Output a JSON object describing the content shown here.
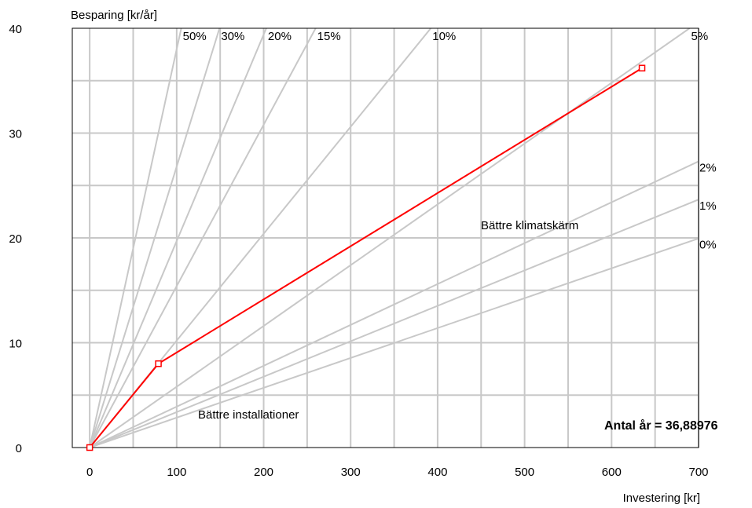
{
  "chart_data": {
    "type": "line",
    "title": "",
    "xlabel": "Investering [kr]",
    "ylabel": "Besparing [kr/år]",
    "xlim": [
      -20,
      700
    ],
    "ylim": [
      0,
      40
    ],
    "x_ticks": [
      0,
      100,
      200,
      300,
      400,
      500,
      600,
      700
    ],
    "y_ticks": [
      0,
      10,
      20,
      30,
      40
    ],
    "x_tick_labels": [
      "0",
      "100",
      "200",
      "300",
      "400",
      "500",
      "600",
      "700"
    ],
    "y_tick_labels": [
      "0",
      "10",
      "20",
      "30",
      "40"
    ],
    "x_minor_step": 50,
    "y_minor_step": 5,
    "grid": true,
    "origin": [
      0,
      0
    ],
    "rate_lines": [
      {
        "label": "50%",
        "slope": 0.38
      },
      {
        "label": "30%",
        "slope": 0.268
      },
      {
        "label": "20%",
        "slope": 0.197
      },
      {
        "label": "15%",
        "slope": 0.154
      },
      {
        "label": "10%",
        "slope": 0.102
      },
      {
        "label": "5%",
        "slope": 0.058
      },
      {
        "label": "2%",
        "slope": 0.039
      },
      {
        "label": "1%",
        "slope": 0.0338
      },
      {
        "label": "0%",
        "slope": 0.0285
      }
    ],
    "series": [
      {
        "color": "#ff0000",
        "x": [
          0,
          79,
          635
        ],
        "y": [
          0,
          8,
          36.2
        ]
      }
    ],
    "annotations": [
      {
        "text": "Bättre installationer",
        "x": 140,
        "y": 3
      },
      {
        "text": "Bättre klimatskärm",
        "x": 470,
        "y": 21
      },
      {
        "text": "Antal år = 36,88976",
        "x": 585,
        "y": 2
      }
    ],
    "colors": {
      "grid": "#c8c8c8",
      "rate_line": "#c8c8c8",
      "series": "#ff0000"
    }
  }
}
